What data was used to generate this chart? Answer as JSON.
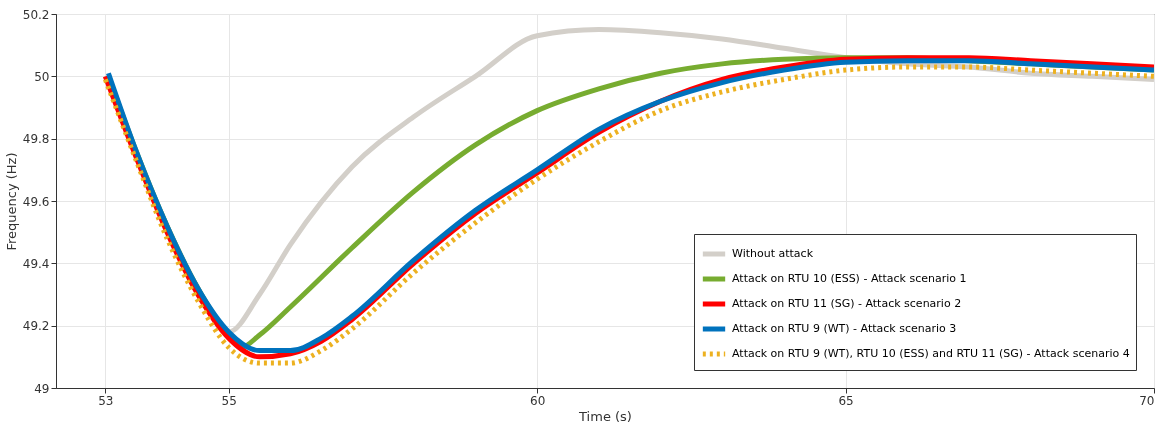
{
  "chart_data": {
    "type": "line",
    "xlabel": "Time (s)",
    "ylabel": "Frequency (Hz)",
    "xlim": [
      52.2,
      70
    ],
    "xticks": [
      53,
      55,
      60,
      65,
      70
    ],
    "ylim": [
      49,
      50.2
    ],
    "yticks": [
      49,
      49.2,
      49.4,
      49.6,
      49.8,
      50,
      50.2
    ],
    "grid": true,
    "legend": "bottom right",
    "series": [
      {
        "name": "Without attack",
        "color": "#d3cfc9",
        "line_style": "solid",
        "x": [
          53,
          53.5,
          54,
          54.5,
          55,
          55.5,
          56,
          57,
          58,
          59,
          60,
          61,
          62,
          63,
          64,
          65,
          66,
          67,
          68,
          69,
          70
        ],
        "values": [
          50.0,
          49.75,
          49.52,
          49.32,
          49.18,
          49.3,
          49.46,
          49.71,
          49.87,
          50.0,
          50.13,
          50.15,
          50.14,
          50.12,
          50.09,
          50.06,
          50.04,
          50.03,
          50.01,
          50.0,
          49.99
        ]
      },
      {
        "name": "Attack on RTU 10 (ESS) - Attack scenario 1",
        "color": "#77ac30",
        "line_style": "solid",
        "x": [
          53.05,
          53.5,
          54,
          54.5,
          55,
          55.2,
          55.5,
          56,
          57,
          58,
          59,
          60,
          61,
          62,
          63,
          64,
          65,
          66,
          67,
          68,
          69,
          70
        ],
        "values": [
          50.0,
          49.76,
          49.52,
          49.32,
          49.17,
          49.13,
          49.17,
          49.26,
          49.45,
          49.63,
          49.78,
          49.89,
          49.96,
          50.01,
          50.04,
          50.055,
          50.06,
          50.06,
          50.05,
          50.04,
          50.03,
          50.02
        ]
      },
      {
        "name": "Attack on RTU 11 (SG) - Attack scenario 2",
        "color": "#ff0000",
        "line_style": "solid",
        "x": [
          53,
          53.5,
          54,
          54.5,
          55,
          55.5,
          56,
          56.5,
          57,
          58,
          59,
          60,
          61,
          62,
          63,
          64,
          65,
          66,
          67,
          68,
          70
        ],
        "values": [
          50.0,
          49.74,
          49.5,
          49.3,
          49.16,
          49.1,
          49.11,
          49.15,
          49.22,
          49.4,
          49.56,
          49.69,
          49.82,
          49.92,
          49.99,
          50.03,
          50.055,
          50.06,
          50.06,
          50.05,
          50.03
        ]
      },
      {
        "name": "Attack on RTU 9 (WT) - Attack scenario 3",
        "color": "#0072bd",
        "line_style": "solid",
        "x": [
          53.05,
          53.5,
          54,
          54.5,
          55,
          55.5,
          56,
          56.5,
          57,
          58,
          59,
          60,
          61,
          62,
          63,
          64,
          65,
          66,
          67,
          68,
          70
        ],
        "values": [
          50.01,
          49.76,
          49.52,
          49.32,
          49.18,
          49.12,
          49.12,
          49.16,
          49.23,
          49.41,
          49.57,
          49.7,
          49.83,
          49.92,
          49.98,
          50.02,
          50.045,
          50.05,
          50.05,
          50.04,
          50.02
        ]
      },
      {
        "name": "Attack on RTU 9 (WT), RTU 10 (ESS) and RTU 11 (SG) - Attack scenario 4",
        "color": "#edb120",
        "line_style": "dotted",
        "x": [
          53,
          53.5,
          54,
          54.5,
          55,
          55.5,
          56,
          56.5,
          57,
          58,
          59,
          60,
          61,
          62,
          63,
          64,
          65,
          66,
          67,
          68,
          70
        ],
        "values": [
          49.99,
          49.73,
          49.48,
          49.28,
          49.13,
          49.08,
          49.08,
          49.12,
          49.19,
          49.37,
          49.53,
          49.67,
          49.79,
          49.89,
          49.95,
          49.99,
          50.02,
          50.03,
          50.03,
          50.02,
          50.0
        ]
      }
    ]
  }
}
